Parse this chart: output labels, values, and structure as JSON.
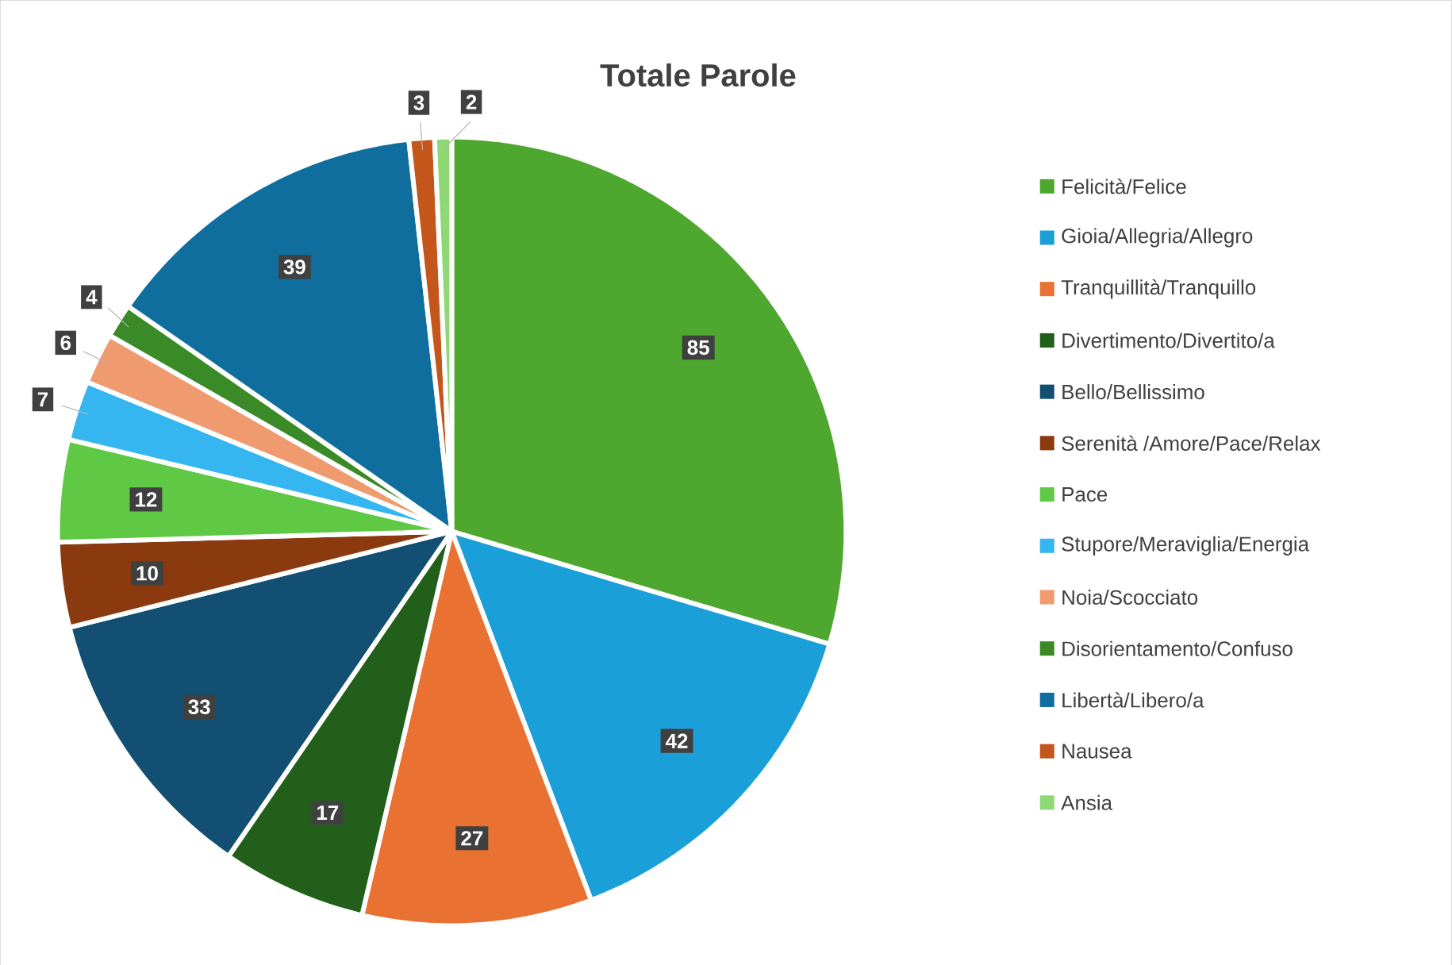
{
  "chart_data": {
    "type": "pie",
    "title": "Totale Parole",
    "categories": [
      "Felicità/Felice",
      "Gioia/Allegria/Allegro",
      "Tranquillità/Tranquillo",
      "Divertimento/Divertito/a",
      "Bello/Bellissimo",
      "Serenità /Amore/Pace/Relax",
      "Pace",
      "Stupore/Meraviglia/Energia",
      "Noia/Scocciato",
      "Disorientamento/Confuso",
      "Libertà/Libero/a",
      "Nausea",
      "Ansia"
    ],
    "values": [
      85,
      42,
      27,
      17,
      33,
      10,
      12,
      7,
      6,
      4,
      39,
      3,
      2
    ],
    "colors": [
      "#4ea72e",
      "#1a9fd8",
      "#e97132",
      "#215f1a",
      "#124f72",
      "#8b3a10",
      "#5fc946",
      "#35b6f0",
      "#f09a70",
      "#3b8a28",
      "#0f6e9e",
      "#c4561b",
      "#8ed973"
    ],
    "data_labels": true,
    "legend": "right"
  }
}
